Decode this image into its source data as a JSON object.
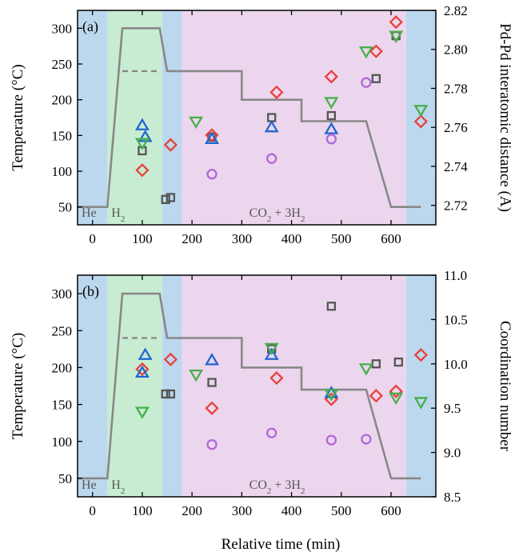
{
  "figure": {
    "xlabel": "Relative time (min)"
  },
  "chart_data": [
    {
      "type": "scatter",
      "panel_label": "(a)",
      "xlim": [
        -30,
        690
      ],
      "xticks": [
        0,
        100,
        200,
        300,
        400,
        500,
        600
      ],
      "ylabel_left": "Temperature (°C)",
      "ylim_left": [
        25,
        325
      ],
      "yticks_left": [
        50,
        100,
        150,
        200,
        250,
        300
      ],
      "ylabel_right": "Pd-Pd interatomic distance (Å)",
      "ylim_right": [
        2.71,
        2.82
      ],
      "yticks_right": [
        "2.72",
        "2.74",
        "2.76",
        "2.78",
        "2.80",
        "2.82"
      ],
      "phases": [
        {
          "label": "He",
          "x0": -30,
          "x1": 30,
          "color": "#bcd8ee"
        },
        {
          "label": "H2",
          "x0": 30,
          "x1": 140,
          "color": "#c8ecd2"
        },
        {
          "label": "",
          "x0": 140,
          "x1": 180,
          "color": "#bcd8ee"
        },
        {
          "label": "CO2 + 3H2",
          "x0": 180,
          "x1": 630,
          "color": "#ecd6ee"
        },
        {
          "label": "",
          "x0": 630,
          "x1": 690,
          "color": "#bcd8ee"
        }
      ],
      "phase_labels": {
        "he": "He",
        "h2": "H",
        "h2_sub": "2",
        "co2": "CO",
        "co2_sub": "2",
        "co2_mid": " + 3H",
        "co2_sub2": "2"
      },
      "temperature_profile": {
        "x": [
          -30,
          30,
          60,
          135,
          150,
          300,
          300,
          420,
          420,
          550,
          600,
          660
        ],
        "y": [
          50,
          50,
          300,
          300,
          240,
          240,
          200,
          200,
          170,
          170,
          50,
          50
        ]
      },
      "temperature_dashed": {
        "x": [
          60,
          135
        ],
        "y": [
          240,
          240
        ]
      },
      "series": [
        {
          "marker": "square",
          "color": "#555555",
          "axis": "right",
          "x": [
            100,
            147,
            157,
            240,
            360,
            480,
            570,
            610
          ],
          "y": [
            2.748,
            2.723,
            2.724,
            2.755,
            2.765,
            2.766,
            2.785,
            2.807
          ]
        },
        {
          "marker": "diamond",
          "color": "#e8413a",
          "axis": "right",
          "x": [
            100,
            157,
            240,
            370,
            480,
            570,
            610,
            660
          ],
          "y": [
            2.738,
            2.751,
            2.756,
            2.778,
            2.786,
            2.799,
            2.814,
            2.763
          ]
        },
        {
          "marker": "triangle-up",
          "color": "#2166d1",
          "axis": "right",
          "x": [
            100,
            106,
            240,
            360,
            480
          ],
          "y": [
            2.761,
            2.755,
            2.754,
            2.76,
            2.759
          ]
        },
        {
          "marker": "triangle-down",
          "color": "#46b04a",
          "axis": "right",
          "x": [
            100,
            208,
            480,
            550,
            610,
            660
          ],
          "y": [
            2.752,
            2.763,
            2.773,
            2.799,
            2.807,
            2.769
          ]
        },
        {
          "marker": "circle",
          "color": "#b068d9",
          "axis": "right",
          "x": [
            240,
            360,
            480,
            550
          ],
          "y": [
            2.736,
            2.744,
            2.754,
            2.783
          ]
        }
      ]
    },
    {
      "type": "scatter",
      "panel_label": "(b)",
      "xlim": [
        -30,
        690
      ],
      "xticks": [
        0,
        100,
        200,
        300,
        400,
        500,
        600
      ],
      "ylabel_left": "Temperature (°C)",
      "ylim_left": [
        25,
        325
      ],
      "yticks_left": [
        50,
        100,
        150,
        200,
        250,
        300
      ],
      "ylabel_right": "Coordination number",
      "ylim_right": [
        8.5,
        11.0
      ],
      "yticks_right": [
        "8.5",
        "9.0",
        "9.5",
        "10.0",
        "10.5",
        "11.0"
      ],
      "phases": [
        {
          "label": "He",
          "x0": -30,
          "x1": 30,
          "color": "#bcd8ee"
        },
        {
          "label": "H2",
          "x0": 30,
          "x1": 140,
          "color": "#c8ecd2"
        },
        {
          "label": "",
          "x0": 140,
          "x1": 180,
          "color": "#bcd8ee"
        },
        {
          "label": "CO2 + 3H2",
          "x0": 180,
          "x1": 630,
          "color": "#ecd6ee"
        },
        {
          "label": "",
          "x0": 630,
          "x1": 690,
          "color": "#bcd8ee"
        }
      ],
      "phase_labels": {
        "he": "He",
        "h2": "H",
        "h2_sub": "2",
        "co2": "CO",
        "co2_sub": "2",
        "co2_mid": " + 3H",
        "co2_sub2": "2"
      },
      "temperature_profile": {
        "x": [
          -30,
          30,
          60,
          135,
          150,
          300,
          300,
          420,
          420,
          550,
          600,
          660
        ],
        "y": [
          50,
          50,
          300,
          300,
          240,
          240,
          200,
          200,
          170,
          170,
          50,
          50
        ]
      },
      "temperature_dashed": {
        "x": [
          60,
          135
        ],
        "y": [
          240,
          240
        ]
      },
      "series": [
        {
          "marker": "square",
          "color": "#555555",
          "axis": "right",
          "x": [
            147,
            157,
            240,
            360,
            480,
            570,
            615
          ],
          "y": [
            9.66,
            9.66,
            9.79,
            10.17,
            10.65,
            10.0,
            10.02
          ]
        },
        {
          "marker": "diamond",
          "color": "#e8413a",
          "axis": "right",
          "x": [
            100,
            157,
            240,
            370,
            480,
            570,
            610,
            660
          ],
          "y": [
            9.94,
            10.05,
            9.5,
            9.84,
            9.6,
            9.64,
            9.69,
            10.1
          ]
        },
        {
          "marker": "triangle-up",
          "color": "#2166d1",
          "axis": "right",
          "x": [
            100,
            106,
            240,
            360,
            480
          ],
          "y": [
            9.9,
            10.1,
            10.04,
            10.1,
            9.67
          ]
        },
        {
          "marker": "triangle-down",
          "color": "#46b04a",
          "axis": "right",
          "x": [
            100,
            208,
            360,
            480,
            550,
            610,
            660
          ],
          "y": [
            9.46,
            9.88,
            10.18,
            9.66,
            9.95,
            9.62,
            9.57
          ]
        },
        {
          "marker": "circle",
          "color": "#b068d9",
          "axis": "right",
          "x": [
            240,
            360,
            480,
            550
          ],
          "y": [
            9.09,
            9.22,
            9.14,
            9.15
          ]
        }
      ]
    }
  ]
}
